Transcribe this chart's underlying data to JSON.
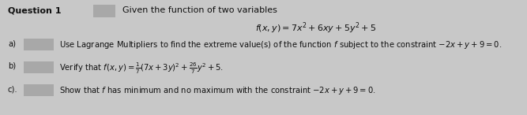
{
  "title_label": "Question 1",
  "intro_text": "Given the function of two variables",
  "function_text": "$f(x, y) = 7x^2+6xy+5y^2+5$",
  "a_label": "a)",
  "a_text": "Use Lagrange Multipliers to find the extreme value(s) of the function $f$ subject to the constraint $-2x+y+9=0$.",
  "b_label": "b)",
  "b_text": "Verify that $f(x, y) = \\frac{1}{7}(7x+3y)^2+\\frac{26}{7}y^2+5$.",
  "c_label": "c).",
  "c_text": "Show that $f$ has minimum and no maximum with the constraint $-2x+y+9=0$.",
  "bg_color": "#c8c8c8",
  "box_color": "#a8a8a8",
  "text_color": "#111111",
  "font_size": 7.2,
  "title_font_size": 8.0,
  "func_font_size": 8.0
}
